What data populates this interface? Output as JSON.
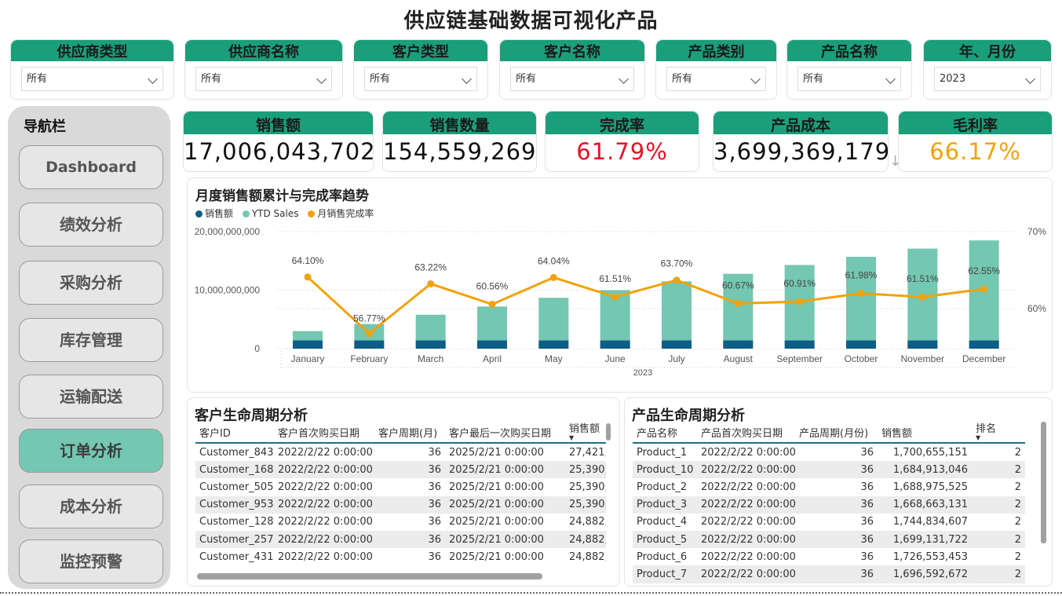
{
  "title": "供应链基础数据可视化产品",
  "slicers": [
    {
      "label": "供应商类型",
      "value": "所有"
    },
    {
      "label": "供应商名称",
      "value": "所有"
    },
    {
      "label": "客户类型",
      "value": "所有"
    },
    {
      "label": "客户名称",
      "value": "所有"
    },
    {
      "label": "产品类别",
      "value": "所有"
    },
    {
      "label": "产品名称",
      "value": "所有"
    },
    {
      "label": "年、月份",
      "value": "2023"
    }
  ],
  "nav": {
    "title": "导航栏",
    "items": [
      "Dashboard",
      "绩效分析",
      "采购分析",
      "库存管理",
      "运输配送",
      "订单分析",
      "成本分析",
      "监控预警"
    ],
    "active": "订单分析"
  },
  "kpis": [
    {
      "label": "销售额",
      "value": "17,006,043,702",
      "color": "#111111"
    },
    {
      "label": "销售数量",
      "value": "154,559,269",
      "color": "#111111"
    },
    {
      "label": "完成率",
      "value": "61.79%",
      "color": "#e81123"
    },
    {
      "label": "产品成本",
      "value": "3,699,369,179",
      "color": "#111111"
    },
    {
      "label": "毛利率",
      "value": "66.17%",
      "color": "#f2a20c"
    }
  ],
  "colors": {
    "accent": "#1b9e7a",
    "sales": "#0d5e86",
    "ytd": "#74c7b0",
    "rate": "#f2a20c"
  },
  "chart_data": {
    "type": "bar",
    "title": "月度销售额累计与完成率趋势",
    "xlabel": "2023",
    "categories": [
      "January",
      "February",
      "March",
      "April",
      "May",
      "June",
      "July",
      "August",
      "September",
      "October",
      "November",
      "December"
    ],
    "series": [
      {
        "name": "销售额",
        "kind": "bar",
        "values": [
          1400000000,
          1400000000,
          1400000000,
          1400000000,
          1400000000,
          1400000000,
          1400000000,
          1400000000,
          1400000000,
          1400000000,
          1400000000,
          1400000000
        ]
      },
      {
        "name": "YTD Sales",
        "kind": "bar",
        "values": [
          3000000000,
          4200000000,
          5800000000,
          7200000000,
          8700000000,
          10000000000,
          11500000000,
          12800000000,
          14300000000,
          15700000000,
          17100000000,
          18500000000
        ]
      },
      {
        "name": "月销售完成率",
        "kind": "line",
        "axis": "right",
        "values": [
          64.1,
          56.77,
          63.22,
          60.56,
          64.04,
          61.51,
          63.7,
          60.67,
          60.91,
          61.98,
          61.51,
          62.55
        ],
        "labels": [
          "64.10%",
          "56.77%",
          "63.22%",
          "60.56%",
          "64.04%",
          "61.51%",
          "63.70%",
          "60.67%",
          "60.91%",
          "61.98%",
          "61.51%",
          "62.55%"
        ]
      }
    ],
    "y_ticks": [
      "20,000,000,000",
      "10,000,000,000",
      "0"
    ],
    "ylim": [
      0,
      20000000000
    ],
    "y2_ticks": [
      "70%",
      "60%"
    ],
    "y2lim": [
      55,
      70
    ],
    "legend": "top-left",
    "grid": true
  },
  "customer_table": {
    "title": "客户生命周期分析",
    "columns": [
      "客户ID",
      "客户首次购买日期",
      "客户周期(月)",
      "客户最后一次购买日期",
      "销售额"
    ],
    "rows": [
      [
        "Customer_843",
        "2022/2/22 0:00:00",
        "36",
        "2025/2/21 0:00:00",
        "27,421,"
      ],
      [
        "Customer_168",
        "2022/2/22 0:00:00",
        "36",
        "2025/2/21 0:00:00",
        "25,390,"
      ],
      [
        "Customer_505",
        "2022/2/22 0:00:00",
        "36",
        "2025/2/21 0:00:00",
        "25,390,"
      ],
      [
        "Customer_953",
        "2022/2/22 0:00:00",
        "36",
        "2025/2/21 0:00:00",
        "25,390,"
      ],
      [
        "Customer_128",
        "2022/2/22 0:00:00",
        "36",
        "2025/2/21 0:00:00",
        "24,882,"
      ],
      [
        "Customer_257",
        "2022/2/22 0:00:00",
        "36",
        "2025/2/21 0:00:00",
        "24,882,"
      ],
      [
        "Customer_431",
        "2022/2/22 0:00:00",
        "36",
        "2025/2/21 0:00:00",
        "24,882,"
      ]
    ]
  },
  "product_table": {
    "title": "产品生命周期分析",
    "columns": [
      "产品名称",
      "产品首次购买日期",
      "产品周期(月份)",
      "销售额",
      "排名"
    ],
    "rows": [
      [
        "Product_1",
        "2022/2/22 0:00:00",
        "36",
        "1,700,655,151",
        "2"
      ],
      [
        "Product_10",
        "2022/2/22 0:00:00",
        "36",
        "1,684,913,046",
        "2"
      ],
      [
        "Product_2",
        "2022/2/22 0:00:00",
        "36",
        "1,688,975,525",
        "2"
      ],
      [
        "Product_3",
        "2022/2/22 0:00:00",
        "36",
        "1,668,663,131",
        "2"
      ],
      [
        "Product_4",
        "2022/2/22 0:00:00",
        "36",
        "1,744,834,607",
        "2"
      ],
      [
        "Product_5",
        "2022/2/22 0:00:00",
        "36",
        "1,699,131,722",
        "2"
      ],
      [
        "Product_6",
        "2022/2/22 0:00:00",
        "36",
        "1,726,553,453",
        "2"
      ],
      [
        "Product_7",
        "2022/2/22 0:00:00",
        "36",
        "1,696,592,672",
        "2"
      ]
    ]
  }
}
